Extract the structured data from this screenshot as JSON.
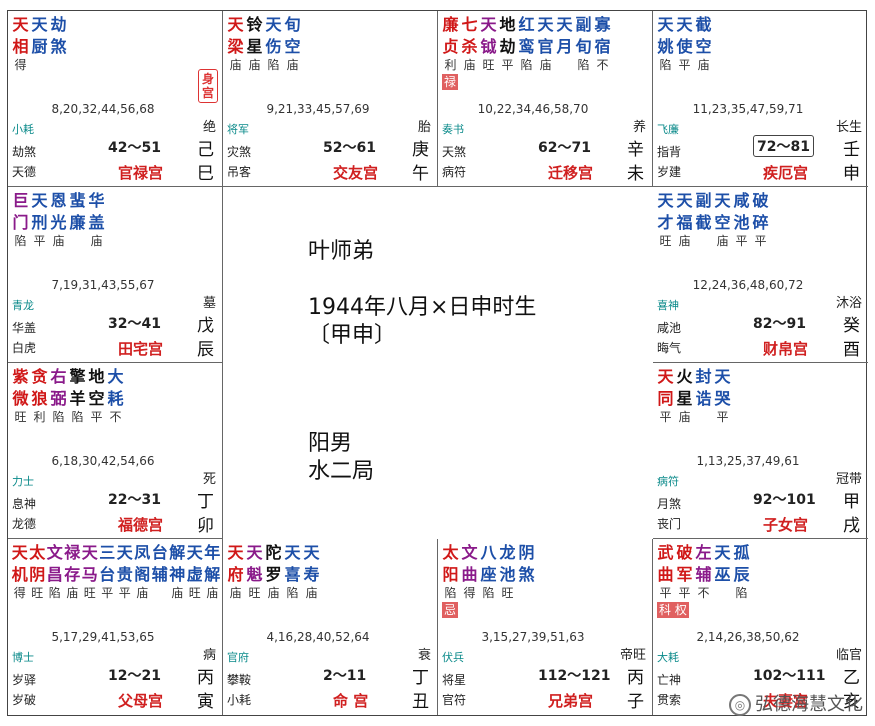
{
  "colors": {
    "red": "#d01818",
    "blue": "#1d4fa8",
    "purple": "#8a1a8a",
    "black": "#111111",
    "palace": "#d02020",
    "tag_bg": "#e06060",
    "minor": "#0a8a8a"
  },
  "center": {
    "name": "叶师弟",
    "birth": "1944年八月×日申时生",
    "ganzhi": "〔甲申〕",
    "gender": "阳男",
    "ju": "水二局"
  },
  "watermark": "弘德海慧文化",
  "palaces": [
    {
      "id": "si",
      "stars": [
        {
          "t": "天相",
          "c": "red",
          "b": "得"
        },
        {
          "t": "天厨",
          "c": "blue",
          "b": ""
        },
        {
          "t": "劫煞",
          "c": "blue",
          "b": ""
        }
      ],
      "shengong": "身宫",
      "ages": "8,20,32,44,56,68",
      "growth": "绝",
      "l1": "小耗",
      "l2": "劫煞",
      "l3": "天德",
      "range": "42～51",
      "stem": "己",
      "branch": "巳",
      "palace": "官禄宫"
    },
    {
      "id": "wu",
      "stars": [
        {
          "t": "天梁",
          "c": "red",
          "b": "庙"
        },
        {
          "t": "铃星",
          "c": "black",
          "b": "庙"
        },
        {
          "t": "天伤",
          "c": "blue",
          "b": "陷"
        },
        {
          "t": "旬空",
          "c": "blue",
          "b": "庙"
        }
      ],
      "ages": "9,21,33,45,57,69",
      "growth": "胎",
      "l1": "将军",
      "l2": "灾煞",
      "l3": "吊客",
      "range": "52～61",
      "stem": "庚",
      "branch": "午",
      "palace": "交友宫"
    },
    {
      "id": "wei",
      "stars": [
        {
          "t": "廉贞",
          "c": "red",
          "b": "利"
        },
        {
          "t": "七杀",
          "c": "red",
          "b": "庙"
        },
        {
          "t": "天钺",
          "c": "purple",
          "b": "旺"
        },
        {
          "t": "地劫",
          "c": "black",
          "b": "平"
        },
        {
          "t": "红鸾",
          "c": "blue",
          "b": "陷"
        },
        {
          "t": "天官",
          "c": "blue",
          "b": "庙"
        },
        {
          "t": "天月",
          "c": "blue",
          "b": ""
        },
        {
          "t": "副旬",
          "c": "blue",
          "b": "陷"
        },
        {
          "t": "寡宿",
          "c": "blue",
          "b": "不"
        }
      ],
      "tag": "禄",
      "ages": "10,22,34,46,58,70",
      "growth": "养",
      "l1": "奏书",
      "l2": "天煞",
      "l3": "病符",
      "range": "62～71",
      "stem": "辛",
      "branch": "未",
      "palace": "迁移宫"
    },
    {
      "id": "shen",
      "stars": [
        {
          "t": "天姚",
          "c": "blue",
          "b": "陷"
        },
        {
          "t": "天使",
          "c": "blue",
          "b": "平"
        },
        {
          "t": "截空",
          "c": "blue",
          "b": "庙"
        }
      ],
      "ages": "11,23,35,47,59,71",
      "growth": "长生",
      "l1": "飞廉",
      "l2": "指背",
      "l3": "岁建",
      "range": "72～81",
      "boxed": true,
      "stem": "壬",
      "branch": "申",
      "palace": "疾厄宫"
    },
    {
      "id": "chen",
      "stars": [
        {
          "t": "巨门",
          "c": "purple",
          "b": "陷"
        },
        {
          "t": "天刑",
          "c": "blue",
          "b": "平"
        },
        {
          "t": "恩光",
          "c": "blue",
          "b": "庙"
        },
        {
          "t": "蜚廉",
          "c": "blue",
          "b": ""
        },
        {
          "t": "华盖",
          "c": "blue",
          "b": "庙"
        }
      ],
      "ages": "7,19,31,43,55,67",
      "growth": "墓",
      "l1": "青龙",
      "l2": "华盖",
      "l3": "白虎",
      "range": "32～41",
      "stem": "戊",
      "branch": "辰",
      "palace": "田宅宫"
    },
    {
      "id": "you",
      "stars": [
        {
          "t": "天才",
          "c": "blue",
          "b": "旺"
        },
        {
          "t": "天福",
          "c": "blue",
          "b": "庙"
        },
        {
          "t": "副截",
          "c": "blue",
          "b": ""
        },
        {
          "t": "天空",
          "c": "blue",
          "b": "庙"
        },
        {
          "t": "咸池",
          "c": "blue",
          "b": "平"
        },
        {
          "t": "破碎",
          "c": "blue",
          "b": "平"
        }
      ],
      "ages": "12,24,36,48,60,72",
      "growth": "沐浴",
      "l1": "喜神",
      "l2": "咸池",
      "l3": "晦气",
      "range": "82～91",
      "stem": "癸",
      "branch": "酉",
      "palace": "财帛宫"
    },
    {
      "id": "mao",
      "stars": [
        {
          "t": "紫微",
          "c": "red",
          "b": "旺"
        },
        {
          "t": "贪狼",
          "c": "red",
          "b": "利"
        },
        {
          "t": "右弼",
          "c": "purple",
          "b": "陷"
        },
        {
          "t": "擎羊",
          "c": "black",
          "b": "陷"
        },
        {
          "t": "地空",
          "c": "black",
          "b": "平"
        },
        {
          "t": "大耗",
          "c": "blue",
          "b": "不"
        }
      ],
      "ages": "6,18,30,42,54,66",
      "growth": "死",
      "l1": "力士",
      "l2": "息神",
      "l3": "龙德",
      "range": "22～31",
      "stem": "丁",
      "branch": "卯",
      "palace": "福德宫"
    },
    {
      "id": "xu",
      "stars": [
        {
          "t": "天同",
          "c": "red",
          "b": "平"
        },
        {
          "t": "火星",
          "c": "black",
          "b": "庙"
        },
        {
          "t": "封诰",
          "c": "blue",
          "b": ""
        },
        {
          "t": "天哭",
          "c": "blue",
          "b": "平"
        }
      ],
      "ages": "1,13,25,37,49,61",
      "growth": "冠带",
      "l1": "病符",
      "l2": "月煞",
      "l3": "丧门",
      "range": "92～101",
      "stem": "甲",
      "branch": "戌",
      "palace": "子女宫"
    },
    {
      "id": "yin",
      "stars": [
        {
          "t": "天机",
          "c": "red",
          "b": "得"
        },
        {
          "t": "太阴",
          "c": "red",
          "b": "旺"
        },
        {
          "t": "文昌",
          "c": "purple",
          "b": "陷"
        },
        {
          "t": "禄存",
          "c": "purple",
          "b": "庙"
        },
        {
          "t": "天马",
          "c": "purple",
          "b": "旺"
        },
        {
          "t": "三台",
          "c": "blue",
          "b": "平"
        },
        {
          "t": "天贵",
          "c": "blue",
          "b": "平"
        },
        {
          "t": "凤阁",
          "c": "blue",
          "b": "庙"
        },
        {
          "t": "台辅",
          "c": "blue",
          "b": ""
        },
        {
          "t": "解神",
          "c": "blue",
          "b": "庙"
        },
        {
          "t": "天虚",
          "c": "blue",
          "b": "旺"
        },
        {
          "t": "年解",
          "c": "blue",
          "b": "庙"
        }
      ],
      "ages": "5,17,29,41,53,65",
      "growth": "病",
      "l1": "博士",
      "l2": "岁驿",
      "l3": "岁破",
      "range": "12～21",
      "stem": "丙",
      "branch": "寅",
      "palace": "父母宫"
    },
    {
      "id": "chou",
      "stars": [
        {
          "t": "天府",
          "c": "red",
          "b": "庙"
        },
        {
          "t": "天魁",
          "c": "purple",
          "b": "旺"
        },
        {
          "t": "陀罗",
          "c": "black",
          "b": "庙"
        },
        {
          "t": "天喜",
          "c": "blue",
          "b": "陷"
        },
        {
          "t": "天寿",
          "c": "blue",
          "b": "庙"
        }
      ],
      "ages": "4,16,28,40,52,64",
      "growth": "衰",
      "l1": "官府",
      "l2": "攀鞍",
      "l3": "小耗",
      "range": "2～11",
      "stem": "丁",
      "branch": "丑",
      "palace": "命 宫"
    },
    {
      "id": "zi",
      "stars": [
        {
          "t": "太阳",
          "c": "red",
          "b": "陷"
        },
        {
          "t": "文曲",
          "c": "purple",
          "b": "得"
        },
        {
          "t": "八座",
          "c": "blue",
          "b": "陷"
        },
        {
          "t": "龙池",
          "c": "blue",
          "b": "旺"
        },
        {
          "t": "阴煞",
          "c": "blue",
          "b": ""
        }
      ],
      "tag": "忌",
      "ages": "3,15,27,39,51,63",
      "growth": "帝旺",
      "l1": "伏兵",
      "l2": "将星",
      "l3": "官符",
      "range": "112～121",
      "stem": "丙",
      "branch": "子",
      "palace": "兄弟宫"
    },
    {
      "id": "hai",
      "stars": [
        {
          "t": "武曲",
          "c": "red",
          "b": "平"
        },
        {
          "t": "破军",
          "c": "red",
          "b": "平"
        },
        {
          "t": "左辅",
          "c": "purple",
          "b": "不"
        },
        {
          "t": "天巫",
          "c": "blue",
          "b": ""
        },
        {
          "t": "孤辰",
          "c": "blue",
          "b": "陷"
        }
      ],
      "tag": "科 权",
      "ages": "2,14,26,38,50,62",
      "growth": "临官",
      "l1": "大耗",
      "l2": "亡神",
      "l3": "贯索",
      "range": "102～111",
      "stem": "乙",
      "branch": "亥",
      "palace": "夫妻宫"
    }
  ]
}
